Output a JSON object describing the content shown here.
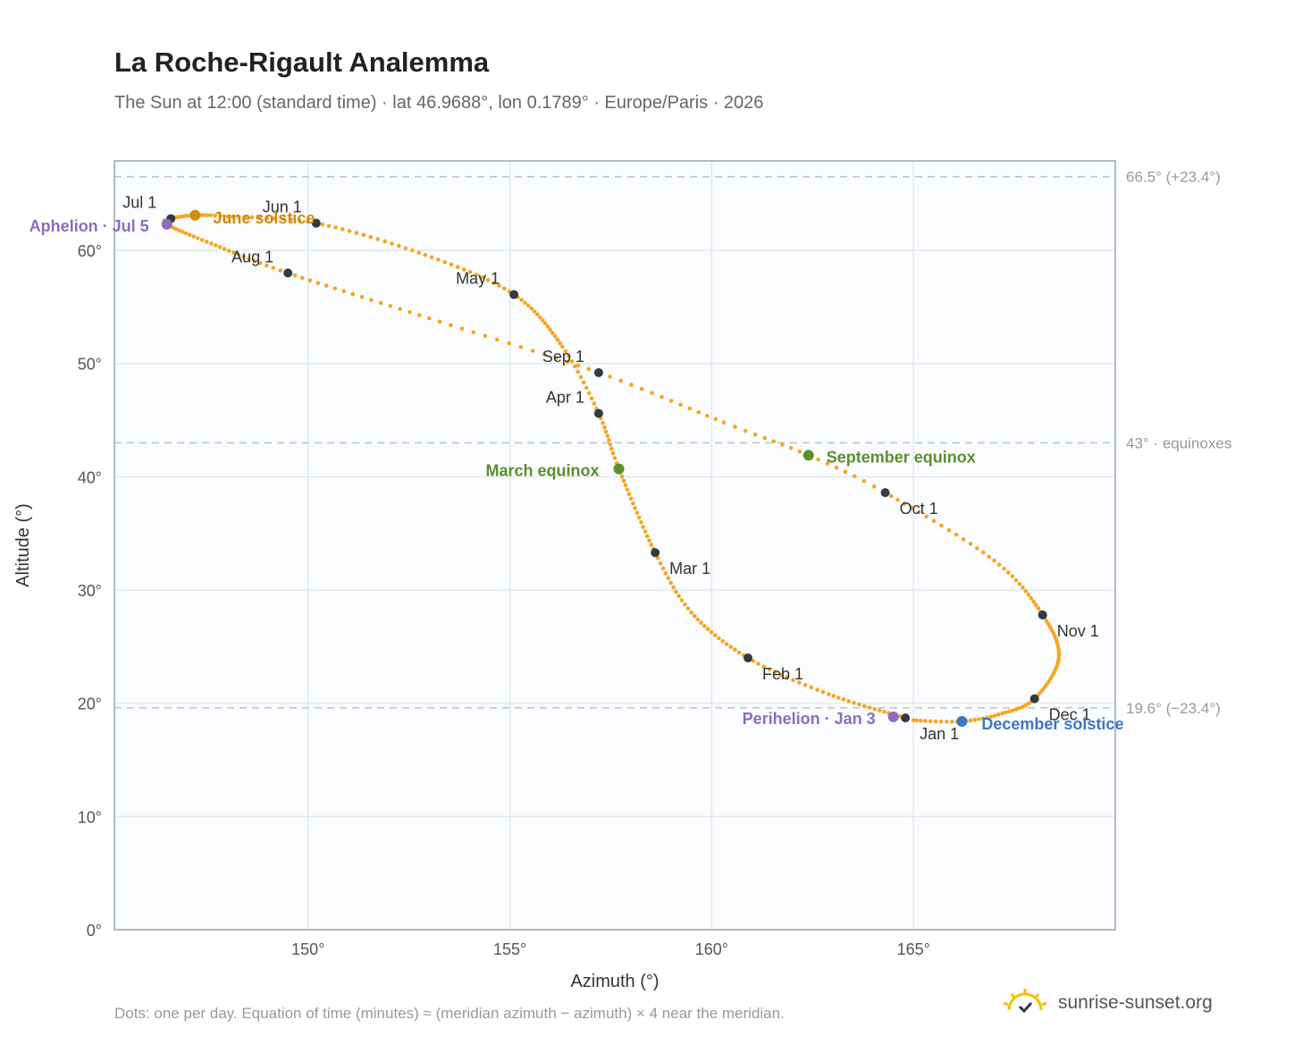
{
  "header": {
    "title": "La Roche-Rigault Analemma",
    "subtitle": "The Sun at 12:00 (standard time) · lat 46.9688°, lon 0.1789° · Europe/Paris · 2026"
  },
  "footer": {
    "note": "Dots: one per day. Equation of time (minutes) ≈ (meridian azimuth − azimuth) × 4 near the meridian.",
    "brand": "sunrise-sunset.org"
  },
  "colors": {
    "path": "#f5a623",
    "month_marker": "#333a44",
    "equinox": "#5a8f2e",
    "june_solstice": "#d28a0f",
    "december_solstice": "#3b78c4",
    "apsis": "#8e6bbf",
    "plot_bg": "#fafcfe",
    "grid": "#e4e8ed",
    "ref_line": "#b9c3cf"
  },
  "chart_data": {
    "type": "scatter",
    "xlabel": "Azimuth (°)",
    "ylabel": "Altitude (°)",
    "xlim": [
      145.2,
      170
    ],
    "ylim": [
      0,
      67.9
    ],
    "xticks": [
      150,
      155,
      160,
      165
    ],
    "xtick_labels": [
      "150°",
      "155°",
      "160°",
      "165°"
    ],
    "yticks": [
      0,
      10,
      20,
      30,
      40,
      50,
      60
    ],
    "ytick_labels": [
      "0°",
      "10°",
      "20°",
      "30°",
      "40°",
      "50°",
      "60°"
    ],
    "grid": true,
    "reference_lines": [
      {
        "y": 66.5,
        "label": "66.5° (+23.4°)"
      },
      {
        "y": 43.0,
        "label": "43° · equinoxes"
      },
      {
        "y": 19.6,
        "label": "19.6° (−23.4°)"
      }
    ],
    "month_markers": [
      {
        "label": "Jan 1",
        "az": 164.8,
        "alt": 18.7
      },
      {
        "label": "Feb 1",
        "az": 160.9,
        "alt": 24.0
      },
      {
        "label": "Mar 1",
        "az": 158.6,
        "alt": 33.3
      },
      {
        "label": "Apr 1",
        "az": 157.2,
        "alt": 45.6
      },
      {
        "label": "May 1",
        "az": 155.1,
        "alt": 56.1
      },
      {
        "label": "Jun 1",
        "az": 150.2,
        "alt": 62.4
      },
      {
        "label": "Jul 1",
        "az": 146.6,
        "alt": 62.8
      },
      {
        "label": "Aug 1",
        "az": 149.5,
        "alt": 58.0
      },
      {
        "label": "Sep 1",
        "az": 157.2,
        "alt": 49.2
      },
      {
        "label": "Oct 1",
        "az": 164.3,
        "alt": 38.6
      },
      {
        "label": "Nov 1",
        "az": 168.2,
        "alt": 27.8
      },
      {
        "label": "Dec 1",
        "az": 168.0,
        "alt": 20.4
      }
    ],
    "events": [
      {
        "label": "March equinox",
        "az": 157.7,
        "alt": 40.7
      },
      {
        "label": "June solstice",
        "az": 147.2,
        "alt": 63.1
      },
      {
        "label": "September equinox",
        "az": 162.4,
        "alt": 41.9
      },
      {
        "label": "December solstice",
        "az": 166.2,
        "alt": 18.4
      },
      {
        "label": "Aphelion · Jul 5",
        "az": 146.5,
        "alt": 62.3
      },
      {
        "label": "Perihelion · Jan 3",
        "az": 164.5,
        "alt": 18.8
      }
    ],
    "path_anchors": [
      {
        "doy": 1,
        "az": 164.8,
        "alt": 18.7
      },
      {
        "doy": 18,
        "az": 162.9,
        "alt": 20.8
      },
      {
        "doy": 32,
        "az": 160.9,
        "alt": 24.0
      },
      {
        "doy": 47,
        "az": 159.5,
        "alt": 28.0
      },
      {
        "doy": 60,
        "az": 158.6,
        "alt": 33.3
      },
      {
        "doy": 79,
        "az": 157.7,
        "alt": 40.7
      },
      {
        "doy": 91,
        "az": 157.2,
        "alt": 45.6
      },
      {
        "doy": 104,
        "az": 156.3,
        "alt": 51.5
      },
      {
        "doy": 121,
        "az": 155.1,
        "alt": 56.1
      },
      {
        "doy": 136,
        "az": 152.9,
        "alt": 59.6
      },
      {
        "doy": 152,
        "az": 150.2,
        "alt": 62.4
      },
      {
        "doy": 164,
        "az": 148.0,
        "alt": 63.0
      },
      {
        "doy": 172,
        "az": 147.2,
        "alt": 63.1
      },
      {
        "doy": 182,
        "az": 146.6,
        "alt": 62.8
      },
      {
        "doy": 186,
        "az": 146.5,
        "alt": 62.3
      },
      {
        "doy": 199,
        "az": 147.6,
        "alt": 60.6
      },
      {
        "doy": 213,
        "az": 149.5,
        "alt": 58.0
      },
      {
        "doy": 229,
        "az": 153.0,
        "alt": 54.0
      },
      {
        "doy": 244,
        "az": 157.2,
        "alt": 49.2
      },
      {
        "doy": 257,
        "az": 160.3,
        "alt": 44.8
      },
      {
        "doy": 266,
        "az": 162.4,
        "alt": 41.9
      },
      {
        "doy": 274,
        "az": 164.3,
        "alt": 38.6
      },
      {
        "doy": 290,
        "az": 167.0,
        "alt": 32.6
      },
      {
        "doy": 305,
        "az": 168.2,
        "alt": 27.8
      },
      {
        "doy": 320,
        "az": 168.6,
        "alt": 24.0
      },
      {
        "doy": 335,
        "az": 168.0,
        "alt": 20.4
      },
      {
        "doy": 345,
        "az": 167.2,
        "alt": 19.1
      },
      {
        "doy": 355,
        "az": 166.2,
        "alt": 18.4
      },
      {
        "doy": 365,
        "az": 165.0,
        "alt": 18.5
      },
      {
        "doy": 366,
        "az": 164.8,
        "alt": 18.7
      }
    ]
  }
}
